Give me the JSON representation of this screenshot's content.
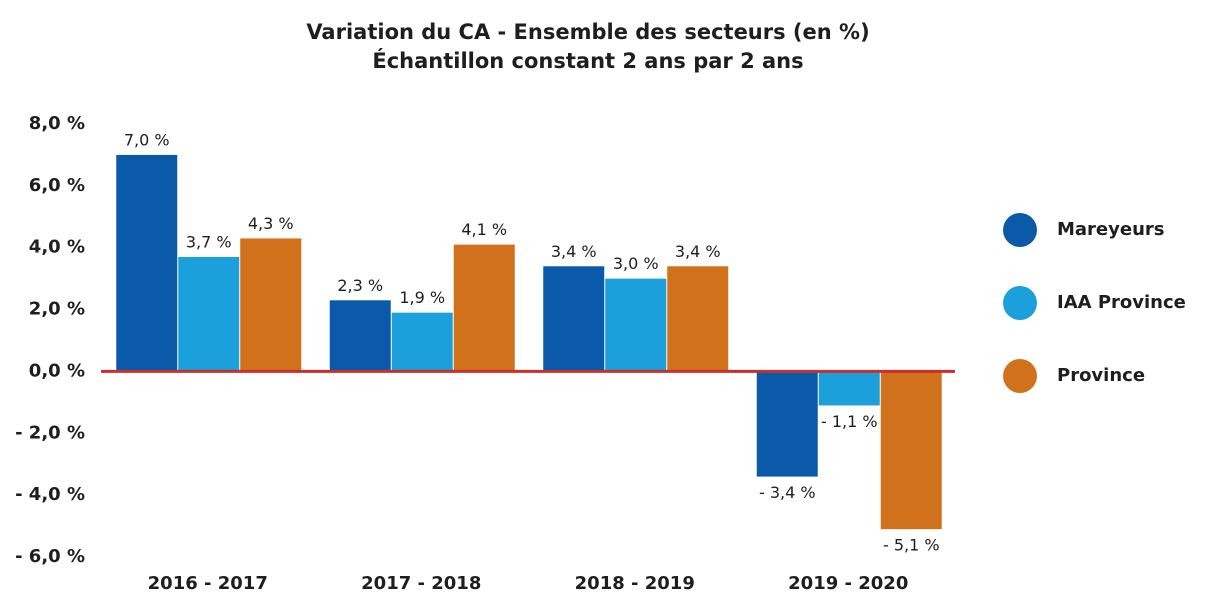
{
  "chart_data": {
    "type": "bar",
    "title": "Variation du CA - Ensemble des secteurs (en %)",
    "subtitle": "Échantillon constant 2 ans par 2 ans",
    "categories": [
      "2016 - 2017",
      "2017 - 2018",
      "2018 - 2019",
      "2019 - 2020"
    ],
    "series": [
      {
        "name": "Mareyeurs",
        "color": "#0b5aa9",
        "values": [
          7.0,
          2.3,
          3.4,
          -3.4
        ],
        "value_labels": [
          "7,0 %",
          "2,3 %",
          "3,4 %",
          "- 3,4 %"
        ]
      },
      {
        "name": "IAA Province",
        "color": "#1ba0db",
        "values": [
          3.7,
          1.9,
          3.0,
          -1.1
        ],
        "value_labels": [
          "3,7 %",
          "1,9 %",
          "3,0 %",
          "- 1,1 %"
        ]
      },
      {
        "name": "Province",
        "color": "#d2711b",
        "values": [
          4.3,
          4.1,
          3.4,
          -5.1
        ],
        "value_labels": [
          "4,3 %",
          "4,1 %",
          "3,4 %",
          "- 5,1 %"
        ]
      }
    ],
    "ylim": [
      -6,
      8
    ],
    "yticks": [
      {
        "value": -6,
        "label": "- 6,0 %"
      },
      {
        "value": -4,
        "label": "- 4,0 %"
      },
      {
        "value": -2,
        "label": "- 2,0 %"
      },
      {
        "value": 0,
        "label": "0,0 %"
      },
      {
        "value": 2,
        "label": "2,0 %"
      },
      {
        "value": 4,
        "label": "4,0 %"
      },
      {
        "value": 6,
        "label": "6,0 %"
      },
      {
        "value": 8,
        "label": "8,0 %"
      }
    ],
    "grid": false,
    "legend": "right"
  }
}
